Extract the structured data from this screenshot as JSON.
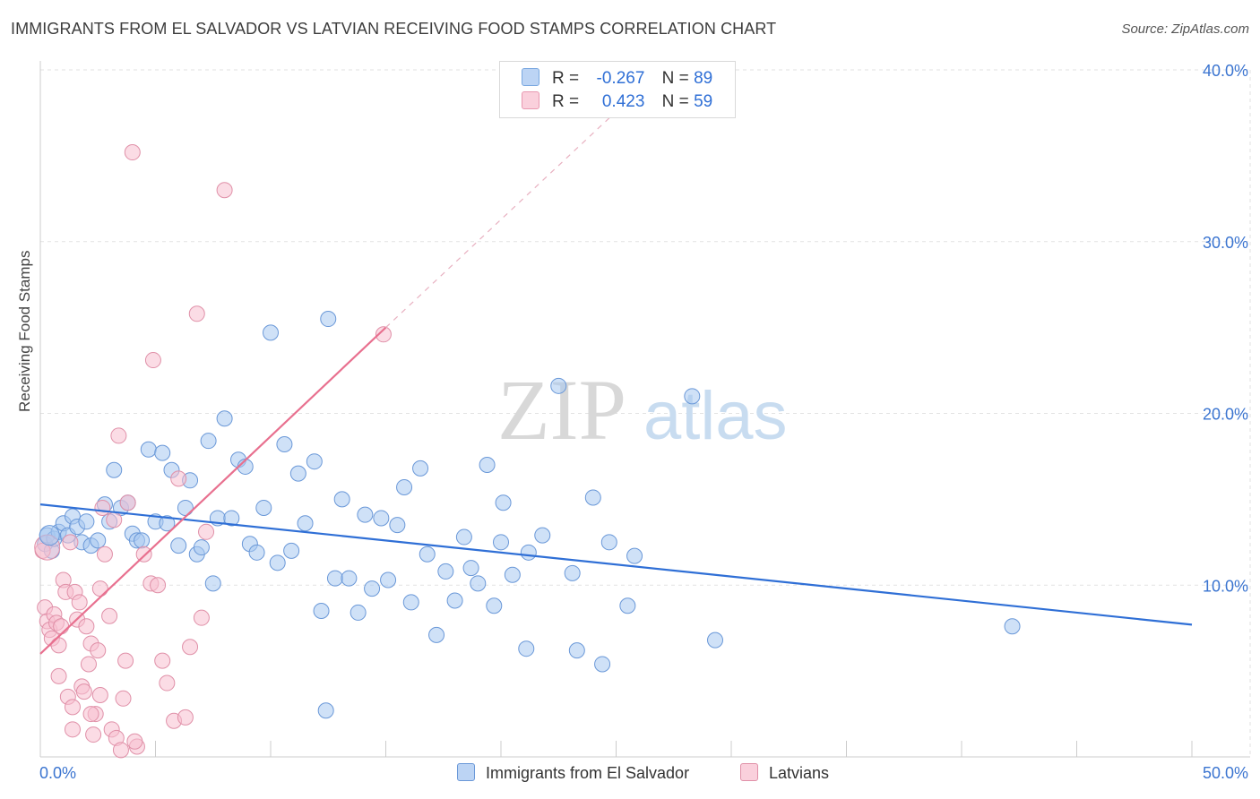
{
  "title": "IMMIGRANTS FROM EL SALVADOR VS LATVIAN RECEIVING FOOD STAMPS CORRELATION CHART",
  "source": "Source: ZipAtlas.com",
  "watermark": {
    "zip": "ZIP",
    "atlas": "atlas"
  },
  "legend": {
    "rows": [
      {
        "r_label": "R =",
        "r_value": "-0.267",
        "n_label": "N =",
        "n_value": "89",
        "color": "#a8c8f0",
        "border": "#7aa8e0"
      },
      {
        "r_label": "R =",
        "r_value": "0.423",
        "n_label": "N =",
        "n_value": "59",
        "color": "#f8c0d0",
        "border": "#e898b0"
      }
    ]
  },
  "bottom_legend": {
    "items": [
      {
        "label": "Immigrants from El Salvador",
        "color": "#a8c8f0",
        "border": "#6a98d8"
      },
      {
        "label": "Latvians",
        "color": "#f8c0d0",
        "border": "#e090a8"
      }
    ]
  },
  "chart_data": {
    "type": "scatter",
    "xlabel": "",
    "ylabel": "Receiving Food Stamps",
    "xlim": [
      0,
      50
    ],
    "ylim": [
      0,
      40
    ],
    "x_tick_labels": [
      "0.0%",
      "50.0%"
    ],
    "y_tick_labels": [
      "10.0%",
      "20.0%",
      "30.0%",
      "40.0%"
    ],
    "y_ticks": [
      10,
      20,
      30,
      40
    ],
    "grid": true,
    "series": [
      {
        "name": "Immigrants from El Salvador",
        "color": "#a8c8f0",
        "edge": "#6a98d8",
        "trend": {
          "x0": 0,
          "y0": 14.7,
          "x1": 50,
          "y1": 7.7,
          "color": "#2f6fd6"
        },
        "points": [
          [
            0.2,
            12.4
          ],
          [
            0.3,
            12.9
          ],
          [
            0.5,
            12.0
          ],
          [
            0.6,
            12.7
          ],
          [
            0.8,
            13.1
          ],
          [
            1.0,
            13.6
          ],
          [
            1.2,
            12.9
          ],
          [
            1.4,
            14.0
          ],
          [
            1.6,
            13.4
          ],
          [
            1.8,
            12.5
          ],
          [
            2.0,
            13.7
          ],
          [
            2.2,
            12.3
          ],
          [
            2.5,
            12.6
          ],
          [
            2.8,
            14.7
          ],
          [
            3.0,
            13.7
          ],
          [
            3.2,
            16.7
          ],
          [
            3.5,
            14.5
          ],
          [
            3.8,
            14.8
          ],
          [
            4.0,
            13.0
          ],
          [
            4.2,
            12.6
          ],
          [
            4.4,
            12.6
          ],
          [
            4.7,
            17.9
          ],
          [
            5.0,
            13.7
          ],
          [
            5.3,
            17.7
          ],
          [
            5.5,
            13.6
          ],
          [
            5.7,
            16.7
          ],
          [
            6.0,
            12.3
          ],
          [
            6.3,
            14.5
          ],
          [
            6.5,
            16.1
          ],
          [
            6.8,
            11.8
          ],
          [
            7.0,
            12.2
          ],
          [
            7.3,
            18.4
          ],
          [
            7.5,
            10.1
          ],
          [
            7.7,
            13.9
          ],
          [
            8.0,
            19.7
          ],
          [
            8.3,
            13.9
          ],
          [
            8.6,
            17.3
          ],
          [
            8.9,
            16.9
          ],
          [
            9.1,
            12.4
          ],
          [
            9.4,
            11.9
          ],
          [
            9.7,
            14.5
          ],
          [
            10.0,
            24.7
          ],
          [
            10.3,
            11.3
          ],
          [
            10.6,
            18.2
          ],
          [
            10.9,
            12.0
          ],
          [
            11.2,
            16.5
          ],
          [
            11.5,
            13.6
          ],
          [
            11.9,
            17.2
          ],
          [
            12.2,
            8.5
          ],
          [
            12.5,
            25.5
          ],
          [
            12.8,
            10.4
          ],
          [
            13.1,
            15.0
          ],
          [
            13.4,
            10.4
          ],
          [
            13.8,
            8.4
          ],
          [
            14.1,
            14.1
          ],
          [
            14.4,
            9.8
          ],
          [
            14.8,
            13.9
          ],
          [
            15.1,
            10.3
          ],
          [
            15.5,
            13.5
          ],
          [
            15.8,
            15.7
          ],
          [
            16.1,
            9.0
          ],
          [
            16.5,
            16.8
          ],
          [
            16.8,
            11.8
          ],
          [
            17.2,
            7.1
          ],
          [
            17.6,
            10.8
          ],
          [
            18.0,
            9.1
          ],
          [
            18.4,
            12.8
          ],
          [
            18.7,
            11.0
          ],
          [
            19.0,
            10.1
          ],
          [
            19.4,
            17.0
          ],
          [
            19.7,
            8.8
          ],
          [
            20.1,
            14.8
          ],
          [
            20.0,
            12.5
          ],
          [
            20.5,
            10.6
          ],
          [
            21.1,
            6.3
          ],
          [
            21.2,
            11.9
          ],
          [
            21.8,
            12.9
          ],
          [
            22.5,
            21.6
          ],
          [
            23.1,
            10.7
          ],
          [
            23.3,
            6.2
          ],
          [
            24.0,
            15.1
          ],
          [
            24.4,
            5.4
          ],
          [
            24.7,
            12.5
          ],
          [
            25.5,
            8.8
          ],
          [
            25.8,
            11.7
          ],
          [
            28.3,
            21.0
          ],
          [
            29.3,
            6.8
          ],
          [
            42.2,
            7.6
          ],
          [
            12.4,
            2.7
          ]
        ]
      },
      {
        "name": "Latvians",
        "color": "#f8c0d0",
        "edge": "#e090a8",
        "trend": {
          "x0": 0,
          "y0": 6.0,
          "x1": 15,
          "y1": 25.0,
          "dash_x1": 25.5,
          "dash_y1": 38.2,
          "color": "#e8708f"
        },
        "points": [
          [
            0.1,
            12.0
          ],
          [
            0.2,
            8.7
          ],
          [
            0.3,
            7.9
          ],
          [
            0.4,
            7.4
          ],
          [
            0.5,
            6.9
          ],
          [
            0.6,
            8.3
          ],
          [
            0.7,
            7.8
          ],
          [
            0.8,
            6.5
          ],
          [
            0.9,
            7.6
          ],
          [
            1.0,
            10.3
          ],
          [
            1.1,
            9.6
          ],
          [
            1.2,
            3.5
          ],
          [
            1.3,
            12.5
          ],
          [
            1.4,
            2.9
          ],
          [
            1.5,
            9.6
          ],
          [
            1.6,
            8.0
          ],
          [
            1.7,
            9.0
          ],
          [
            1.8,
            4.1
          ],
          [
            1.9,
            3.8
          ],
          [
            2.0,
            7.6
          ],
          [
            2.1,
            5.4
          ],
          [
            2.2,
            6.6
          ],
          [
            2.3,
            1.3
          ],
          [
            2.4,
            2.5
          ],
          [
            2.5,
            6.2
          ],
          [
            2.6,
            9.8
          ],
          [
            2.7,
            14.5
          ],
          [
            2.8,
            11.8
          ],
          [
            3.0,
            8.2
          ],
          [
            3.1,
            1.6
          ],
          [
            3.2,
            13.8
          ],
          [
            3.3,
            1.1
          ],
          [
            3.4,
            18.7
          ],
          [
            3.5,
            0.4
          ],
          [
            3.6,
            3.4
          ],
          [
            3.7,
            5.6
          ],
          [
            3.8,
            14.8
          ],
          [
            4.0,
            35.2
          ],
          [
            4.2,
            0.6
          ],
          [
            4.5,
            11.8
          ],
          [
            4.8,
            10.1
          ],
          [
            4.9,
            23.1
          ],
          [
            5.1,
            10.0
          ],
          [
            5.3,
            5.6
          ],
          [
            5.5,
            4.3
          ],
          [
            5.8,
            2.1
          ],
          [
            6.0,
            16.2
          ],
          [
            6.3,
            2.3
          ],
          [
            6.5,
            6.4
          ],
          [
            6.8,
            25.8
          ],
          [
            7.0,
            8.1
          ],
          [
            7.2,
            13.1
          ],
          [
            8.0,
            33.0
          ],
          [
            14.9,
            24.6
          ],
          [
            2.2,
            2.5
          ],
          [
            1.4,
            1.6
          ],
          [
            0.8,
            4.7
          ],
          [
            4.1,
            0.9
          ],
          [
            2.6,
            3.6
          ]
        ]
      }
    ]
  }
}
